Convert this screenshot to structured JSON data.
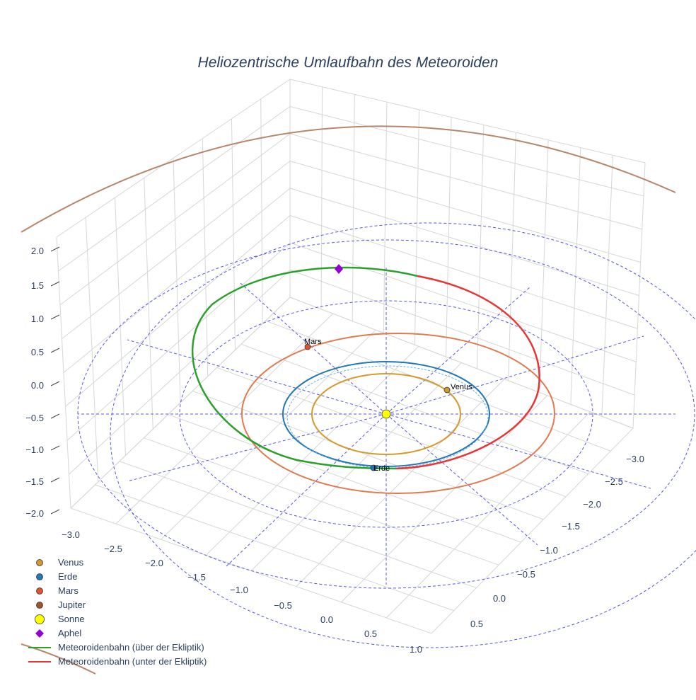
{
  "chart_data": {
    "type": "scatter3d",
    "title": "Heliozentrische Umlaufbahn des Meteoroiden",
    "x_ticks": [
      "−3.0",
      "−2.5",
      "−2.0",
      "−1.5",
      "−1.0",
      "−0.5",
      "0.0",
      "0.5",
      "1.0"
    ],
    "y_ticks": [
      "−3.0",
      "−2.5",
      "−2.0",
      "−1.5",
      "−1.0",
      "−0.5",
      "0.0",
      "0.5"
    ],
    "z_ticks": [
      "2.0",
      "1.5",
      "1.0",
      "0.5",
      "0.0",
      "−0.5",
      "−1.0",
      "−1.5",
      "−2.0"
    ],
    "grid": true,
    "legend_position": "bottom-left",
    "colors": {
      "venus": "#D39B2E",
      "erde": "#1F77B4",
      "mars": "#E0522B",
      "jupiter": "#A0522D",
      "sonne": "#FFFF00",
      "aphel": "#9400D3",
      "above": "#2CA02C",
      "below": "#E83535",
      "ref": "#5555EE"
    },
    "legend": [
      {
        "key": "venus",
        "label": "Venus",
        "symbol": "circle"
      },
      {
        "key": "erde",
        "label": "Erde",
        "symbol": "circle"
      },
      {
        "key": "mars",
        "label": "Mars",
        "symbol": "circle"
      },
      {
        "key": "jupiter",
        "label": "Jupiter",
        "symbol": "circle"
      },
      {
        "key": "sonne",
        "label": "Sonne",
        "symbol": "circle-big"
      },
      {
        "key": "aphel",
        "label": "Aphel",
        "symbol": "diamond"
      },
      {
        "key": "above",
        "label": "Meteoroidenbahn (über der Ekliptik)",
        "symbol": "line"
      },
      {
        "key": "below",
        "label": "Meteoroidenbahn (unter der Ekliptik)",
        "symbol": "line"
      }
    ],
    "point_labels": [
      {
        "key": "mars",
        "text": "Mars"
      },
      {
        "key": "venus",
        "text": "Venus"
      },
      {
        "key": "erde",
        "text": "Erde"
      }
    ]
  }
}
